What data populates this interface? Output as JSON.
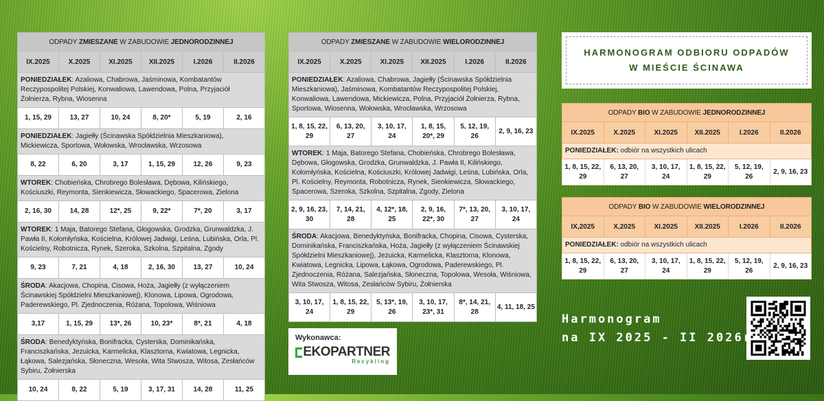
{
  "tables": [
    {
      "title": [
        "ODPADY ",
        "ZMIESZANE",
        " W ZABUDOWIE ",
        "JEDNORODZINNEJ"
      ],
      "months": [
        "IX.2025",
        "X.2025",
        "XI.2025",
        "XII.2025",
        "I.2026",
        "II.2026"
      ],
      "sections": [
        {
          "day": "PONIEDZIAŁEK",
          "streets": ": Azaliowa, Chabrowa, Jaśminowa, Kombatantów Reczypospolitej Polskiej, Konwaliowa, Lawendowa, Polna, Przyjaciół Żołnierza, Rybna, Wiosenna",
          "dates": [
            "1, 15, 29",
            "13, 27",
            "10, 24",
            "8, 20*",
            "5, 19",
            "2, 16"
          ]
        },
        {
          "day": "PONIEDZIAŁEK",
          "streets": ": Jagiełły (Ścinawska Spółdzielnia Mieszkaniowa), Mickiewicza, Sportowa, Wołowska, Wrocławska, Wrzosowa",
          "dates": [
            "8, 22",
            "6, 20",
            "3, 17",
            "1, 15, 29",
            "12, 26",
            "9, 23"
          ]
        },
        {
          "day": "WTOREK",
          "streets": ": Chobieńska, Chrobrego Bolesława, Dębowa, Kilińskiego, Kościuszki, Reymonta, Sienkiewicza, Słowackiego, Spacerowa, Zielona",
          "dates": [
            "2, 16, 30",
            "14, 28",
            "12*, 25",
            "9, 22*",
            "7*, 20",
            "3, 17"
          ]
        },
        {
          "day": "WTOREK",
          "streets": ": 1 Maja, Batorego Stefana, Głogowska, Grodzka, Grunwaldzka, J. Pawła II, Kołomłyńska, Kościelna, Królowej Jadwigi, Leśna, Lubińska, Orla, Pl. Kościelny, Robotnicza, Rynek, Szeroka, Szkolna, Szpitalna, Zgody",
          "dates": [
            "9, 23",
            "7, 21",
            "4, 18",
            "2, 16, 30",
            "13, 27",
            "10, 24"
          ]
        },
        {
          "day": "ŚRODA",
          "streets": ": Akacjowa, Chopina, Cisowa, Hoża, Jagiełły (z wyłączeniem Ścinawskiej Spółdzielni Mieszkaniowej), Klonowa, Lipowa, Ogrodowa, Paderewskiego, Pl. Zjednoczenia, Różana, Topolowa, Wiśniowa",
          "dates": [
            "3,17",
            "1, 15, 29",
            "13*, 26",
            "10, 23*",
            "8*, 21",
            "4, 18"
          ]
        },
        {
          "day": "ŚRODA",
          "streets": ": Benedyktyńska, Bonifracka, Cysterska, Dominikańska, Franciszkańska, Jezuicka, Karmelicka, Klasztorna, Kwiatowa, Legnicka, Łąkowa, Salezjańska, Słoneczna, Wesoła, Wita Stwosza, Witosa, Zesłańców Sybiru, Żołnierska",
          "dates": [
            "10, 24",
            "8, 22",
            "5, 19",
            "3, 17, 31",
            "14, 28",
            "11, 25"
          ]
        }
      ]
    },
    {
      "title": [
        "ODPADY ",
        "ZMIESZANE",
        " W ZABUDOWIE ",
        "WIELORODZINNEJ"
      ],
      "months": [
        "IX.2025",
        "X.2025",
        "XI.2025",
        "XII.2025",
        "I.2026",
        "II.2026"
      ],
      "sections": [
        {
          "day": "PONIEDZIAŁEK",
          "streets": ": Azaliowa, Chabrowa, Jagiełły (Ścinawska Spółdzielnia Mieszkaniowa), Jaśminowa, Kombatantów Reczypospolitej Polskiej, Konwaliowa, Lawendowa, Mickiewicza, Polna, Przyjaciół Żołnierza, Rybna, Sportowa, Wiosenna, Wołowska, Wrocławska, Wrzosowa",
          "dates": [
            "1, 8, 15, 22, 29",
            "6, 13, 20, 27",
            "3, 10, 17, 24",
            "1, 8, 15, 20*, 29",
            "5, 12, 19, 26",
            "2, 9, 16, 23"
          ]
        },
        {
          "day": "WTOREK",
          "streets": ": 1 Maja, Batorego Stefana, Chobieńska, Chrobrego Bolesława, Dębowa, Głogowska, Grodzka, Grunwaldzka, J. Pawła II, Kilińskiego, Kołomłyńska, Kościelna, Kościuszki, Królowej Jadwigi, Leśna, Lubińska, Orla, Pl. Kościelny, Reymonta, Robotnicza, Rynek, Sienkiewicza, Słowackiego, Spacerowa, Szeroka, Szkolna, Szpitalna, Zgody, Zielona",
          "dates": [
            "2, 9, 16, 23, 30",
            "7, 14, 21, 28",
            "4, 12*, 18, 25",
            "2, 9, 16, 22*, 30",
            "7*, 13, 20, 27",
            "3, 10, 17, 24"
          ]
        },
        {
          "day": "ŚRODA",
          "streets": ": Akacjowa, Benedyktyńska, Bonifracka, Chopina, Cisowa, Cysterska, Dominikańska, Franciszkańska, Hoża, Jagiełły (z wyłączeniem Ścinawskiej Spółdzielni Mieszkaniowej), Jezuicka, Karmelicka, Klasztorna, Klonowa, Kwiatowa, Legnicka, Lipowa, Łąkowa, Ogrodowa, Paderewskiego, Pl. Zjednoczenia, Różana, Salezjańska, Słoneczna, Topolowa, Wesoła, Wiśniowa, Wita Stwosza, Witosa, Zesłańców Sybiru, Żołnierska",
          "dates": [
            "3, 10, 17, 24",
            "1, 8, 15, 22, 29",
            "5, 13*, 19, 26",
            "3, 10, 17, 23*, 31",
            "8*, 14, 21, 28",
            "4, 11, 18, 25"
          ]
        }
      ]
    },
    {
      "title": [
        "ODPADY ",
        "BIO",
        " W ZABUDOWIE ",
        "JEDNORODZINNEJ"
      ],
      "months": [
        "IX.2025",
        "X.2025",
        "XI.2025",
        "XII.2025",
        "I.2026",
        "II.2026"
      ],
      "sections": [
        {
          "day": "PONIEDZIAŁEK:",
          "streets": " odbiór na wszystkich ulicach",
          "dates": [
            "1, 8, 15, 22, 29",
            "6, 13, 20, 27",
            "3, 10, 17, 24",
            "1, 8, 15, 22, 29",
            "5, 12, 19, 26",
            "2, 9, 16, 23"
          ]
        }
      ]
    },
    {
      "title": [
        "ODPADY ",
        "BIO",
        " W ZABUDOWIE ",
        "WIELORODZINNEJ"
      ],
      "months": [
        "IX,2025",
        "X,2025",
        "XI.2025",
        "XII.2025",
        "I.2026",
        "II.2026"
      ],
      "sections": [
        {
          "day": "PONIEDZIAŁEK:",
          "streets": " odbiór na wszystkich ulicach",
          "dates": [
            "1, 8, 15, 22, 29",
            "6, 13, 20, 27",
            "3, 10, 17, 24",
            "1, 8, 15, 22, 29",
            "5, 12, 19, 26",
            "2, 9, 16, 23"
          ]
        }
      ]
    }
  ],
  "header": {
    "line1": "HARMONOGRAM ODBIORU ODPADÓW",
    "line2": "W MIEŚCIE ŚCINAWA"
  },
  "period": {
    "line1": "Harmonogram",
    "line2": "na IX 2025 - II 2026r."
  },
  "contractor": {
    "label": "Wykonawca:",
    "logo_text": "EKOPARTNER",
    "logo_sub": "Recykling"
  },
  "colors": {
    "gray_header": "#c6c6c6",
    "bio_header": "#f8c79a",
    "title_green": "#2f5a1c"
  }
}
